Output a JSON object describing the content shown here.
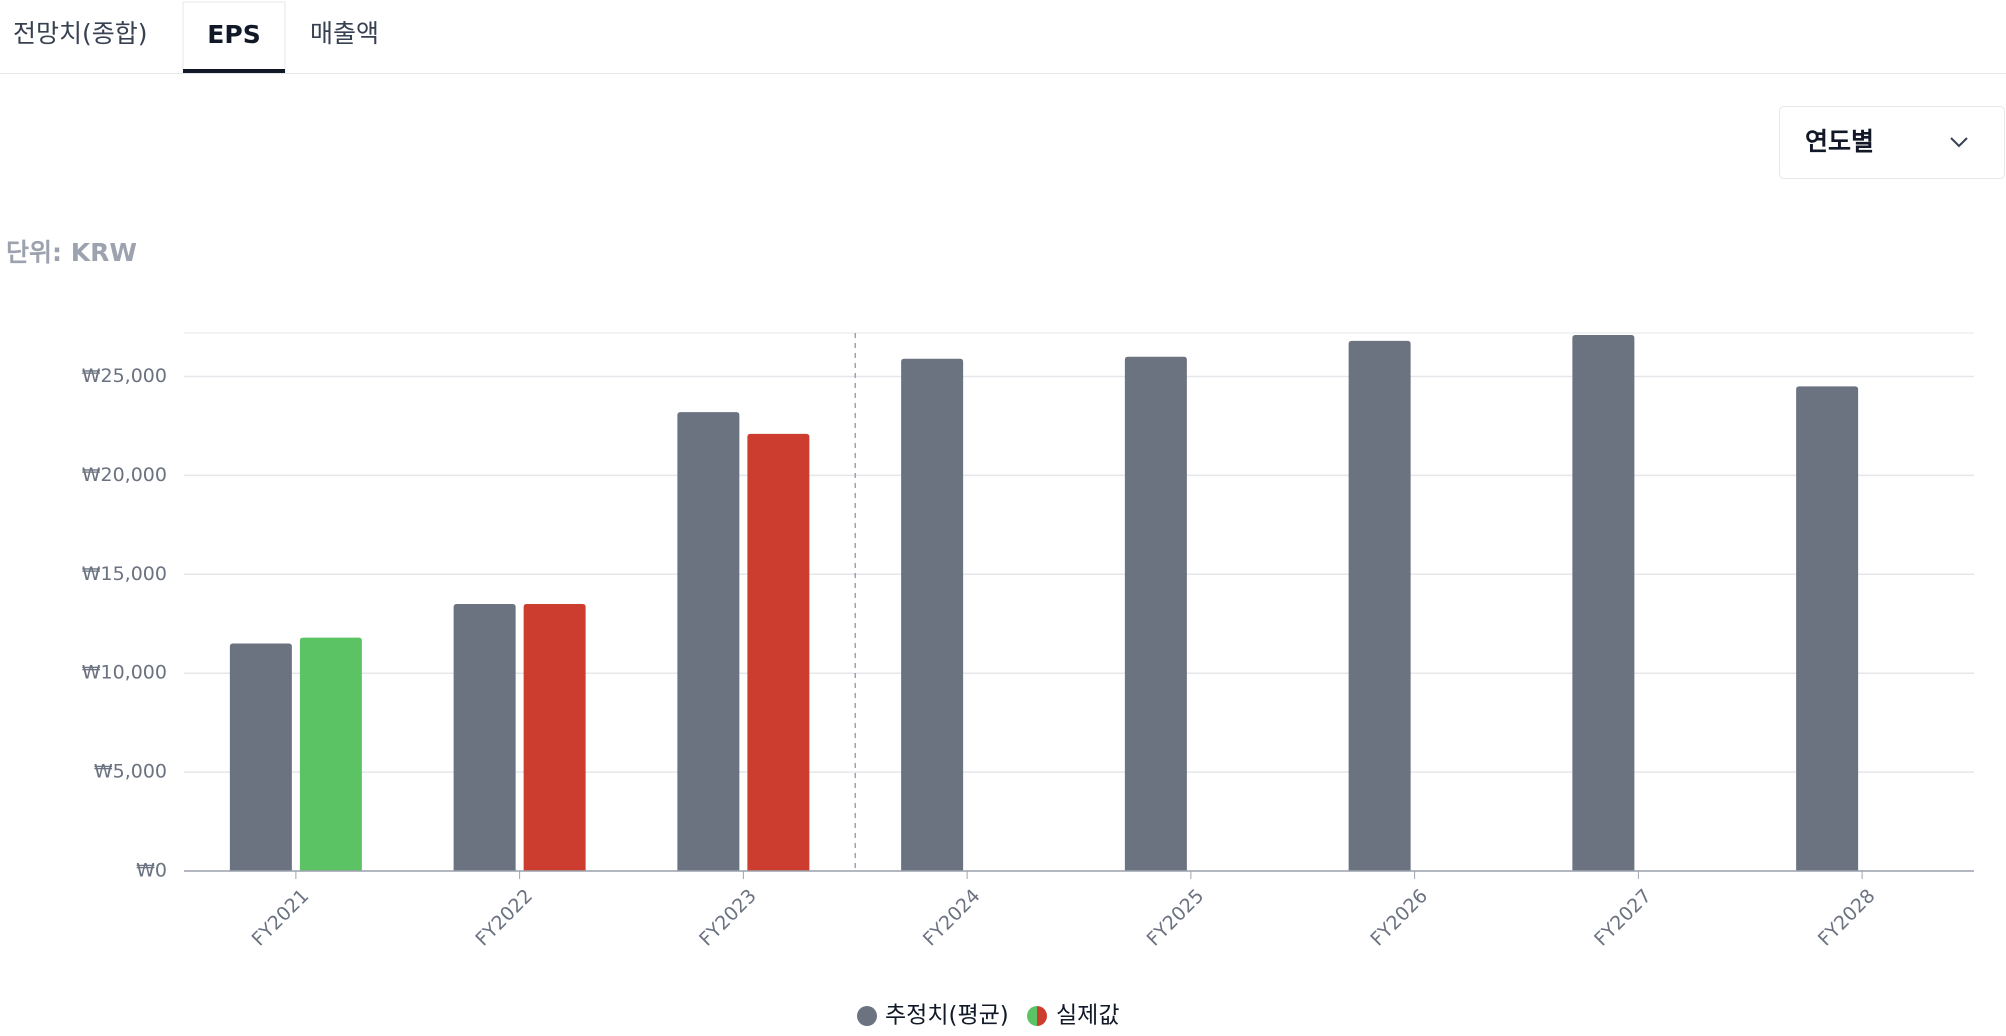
{
  "tabs": [
    "전망치(종합)",
    "EPS",
    "매출액"
  ],
  "dropdown": "연도별",
  "chart_data": {
    "type": "bar",
    "unit_label": "단위: KRW",
    "categories": [
      "FY2021",
      "FY2022",
      "FY2023",
      "FY2024",
      "FY2025",
      "FY2026",
      "FY2027",
      "FY2028"
    ],
    "series": [
      {
        "name": "추정치(평균)",
        "color": "#6b7280",
        "values": [
          11500,
          13500,
          23200,
          25900,
          26000,
          26800,
          27100,
          24500
        ]
      },
      {
        "name": "실제값",
        "colors": [
          "#5cc365",
          "#cd3d2f",
          "#cd3d2f",
          null,
          null,
          null,
          null,
          null
        ],
        "values": [
          11800,
          13500,
          22100,
          null,
          null,
          null,
          null,
          null
        ]
      }
    ],
    "ylim": [
      0,
      27200
    ],
    "yticks": [
      {
        "value": 0,
        "label": "₩0"
      },
      {
        "value": 5000,
        "label": "₩5,000"
      },
      {
        "value": 10000,
        "label": "₩10,000"
      },
      {
        "value": 15000,
        "label": "₩15,000"
      },
      {
        "value": 20000,
        "label": "₩20,000"
      },
      {
        "value": 25000,
        "label": "₩25,000"
      }
    ],
    "grid": true
  }
}
